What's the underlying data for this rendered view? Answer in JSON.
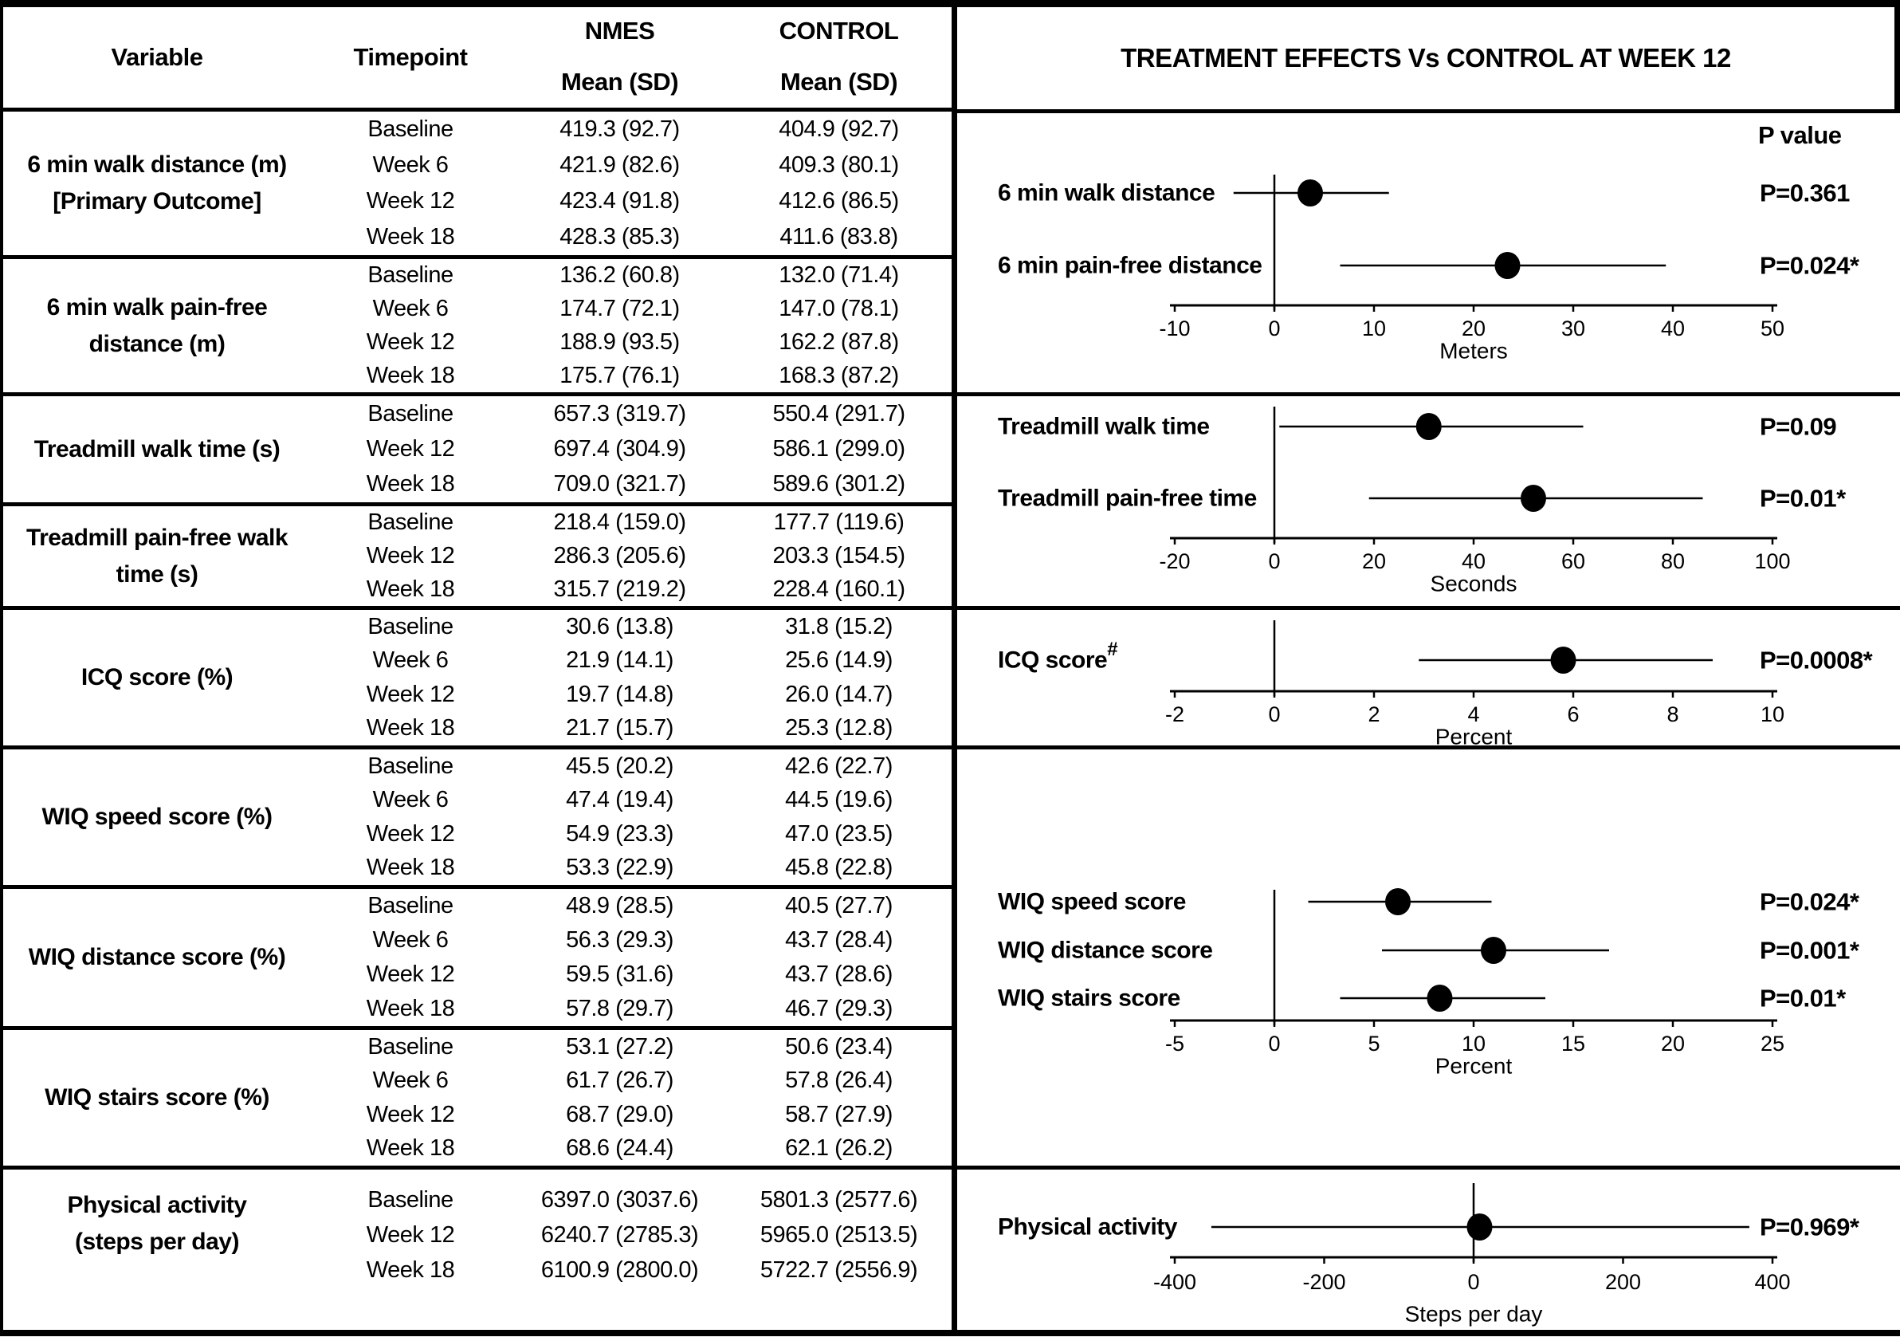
{
  "table": {
    "headers": {
      "variable": "Variable",
      "timepoint": "Timepoint",
      "nmes": "NMES",
      "control": "CONTROL",
      "mean_sd": "Mean (SD)"
    },
    "sections": [
      {
        "variable": [
          "6 min walk distance (m)",
          "[Primary Outcome]"
        ],
        "rows": [
          [
            "Baseline",
            "419.3 (92.7)",
            "404.9 (92.7)"
          ],
          [
            "Week 6",
            "421.9 (82.6)",
            "409.3 (80.1)"
          ],
          [
            "Week 12",
            "423.4 (91.8)",
            "412.6 (86.5)"
          ],
          [
            "Week 18",
            "428.3 (85.3)",
            "411.6 (83.8)"
          ]
        ]
      },
      {
        "variable": [
          "6 min walk pain-free",
          "distance (m)"
        ],
        "rows": [
          [
            "Baseline",
            "136.2 (60.8)",
            "132.0 (71.4)"
          ],
          [
            "Week 6",
            "174.7 (72.1)",
            "147.0 (78.1)"
          ],
          [
            "Week 12",
            "188.9 (93.5)",
            "162.2 (87.8)"
          ],
          [
            "Week 18",
            "175.7 (76.1)",
            "168.3 (87.2)"
          ]
        ]
      },
      {
        "variable": [
          "Treadmill walk time (s)"
        ],
        "rows": [
          [
            "Baseline",
            "657.3 (319.7)",
            "550.4 (291.7)"
          ],
          [
            "Week 12",
            "697.4 (304.9)",
            "586.1 (299.0)"
          ],
          [
            "Week 18",
            "709.0 (321.7)",
            "589.6 (301.2)"
          ]
        ]
      },
      {
        "variable": [
          "Treadmill pain-free walk",
          "time (s)"
        ],
        "rows": [
          [
            "Baseline",
            "218.4 (159.0)",
            "177.7 (119.6)"
          ],
          [
            "Week 12",
            "286.3 (205.6)",
            "203.3 (154.5)"
          ],
          [
            "Week 18",
            "315.7 (219.2)",
            "228.4 (160.1)"
          ]
        ]
      },
      {
        "variable": [
          "ICQ score (%)"
        ],
        "rows": [
          [
            "Baseline",
            "30.6 (13.8)",
            "31.8 (15.2)"
          ],
          [
            "Week 6",
            "21.9 (14.1)",
            "25.6 (14.9)"
          ],
          [
            "Week 12",
            "19.7 (14.8)",
            "26.0 (14.7)"
          ],
          [
            "Week 18",
            "21.7 (15.7)",
            "25.3 (12.8)"
          ]
        ]
      },
      {
        "variable": [
          "WIQ speed score (%)"
        ],
        "rows": [
          [
            "Baseline",
            "45.5 (20.2)",
            "42.6 (22.7)"
          ],
          [
            "Week 6",
            "47.4 (19.4)",
            "44.5 (19.6)"
          ],
          [
            "Week 12",
            "54.9 (23.3)",
            "47.0 (23.5)"
          ],
          [
            "Week 18",
            "53.3 (22.9)",
            "45.8 (22.8)"
          ]
        ]
      },
      {
        "variable": [
          "WIQ distance score (%)"
        ],
        "rows": [
          [
            "Baseline",
            "48.9 (28.5)",
            "40.5 (27.7)"
          ],
          [
            "Week 6",
            "56.3 (29.3)",
            "43.7 (28.4)"
          ],
          [
            "Week 12",
            "59.5 (31.6)",
            "43.7 (28.6)"
          ],
          [
            "Week 18",
            "57.8 (29.7)",
            "46.7 (29.3)"
          ]
        ]
      },
      {
        "variable": [
          "WIQ stairs score (%)"
        ],
        "rows": [
          [
            "Baseline",
            "53.1 (27.2)",
            "50.6 (23.4)"
          ],
          [
            "Week 6",
            "61.7 (26.7)",
            "57.8 (26.4)"
          ],
          [
            "Week 12",
            "68.7 (29.0)",
            "58.7 (27.9)"
          ],
          [
            "Week 18",
            "68.6 (24.4)",
            "62.1 (26.2)"
          ]
        ]
      },
      {
        "variable": [
          "Physical activity",
          "(steps per day)"
        ],
        "rows": [
          [
            "Baseline",
            "6397.0 (3037.6)",
            "5801.3 (2577.6)"
          ],
          [
            "Week 12",
            "6240.7 (2785.3)",
            "5965.0 (2513.5)"
          ],
          [
            "Week 18",
            "6100.9 (2800.0)",
            "5722.7 (2556.9)"
          ]
        ]
      }
    ]
  },
  "panel": {
    "title": "TREATMENT EFFECTS Vs CONTROL AT WEEK 12",
    "p_value_header": "P value"
  },
  "chart_data": [
    {
      "type": "forest",
      "xlabel": "Meters",
      "xlim": [
        -10,
        50
      ],
      "ticks": [
        -10,
        0,
        10,
        20,
        30,
        40,
        50
      ],
      "rows": [
        {
          "label": "6 min walk distance",
          "estimate": 3.6,
          "ci_low": -4.1,
          "ci_high": 11.5,
          "p": "P=0.361"
        },
        {
          "label": "6 min pain-free distance",
          "estimate": 23.4,
          "ci_low": 6.6,
          "ci_high": 39.3,
          "p": "P=0.024*"
        }
      ]
    },
    {
      "type": "forest",
      "xlabel": "Seconds",
      "xlim": [
        -20,
        100
      ],
      "ticks": [
        -20,
        0,
        20,
        40,
        60,
        80,
        100
      ],
      "rows": [
        {
          "label": "Treadmill walk time",
          "estimate": 31,
          "ci_low": 1,
          "ci_high": 62,
          "p": "P=0.09"
        },
        {
          "label": "Treadmill pain-free time",
          "estimate": 52,
          "ci_low": 19,
          "ci_high": 86,
          "p": "P=0.01*"
        }
      ]
    },
    {
      "type": "forest",
      "xlabel": "Percent",
      "xlim": [
        -2,
        10
      ],
      "ticks": [
        -2,
        0,
        2,
        4,
        6,
        8,
        10
      ],
      "rows": [
        {
          "label": "ICQ score",
          "sup": "#",
          "estimate": 5.8,
          "ci_low": 2.9,
          "ci_high": 8.8,
          "p": "P=0.0008*"
        }
      ]
    },
    {
      "type": "forest",
      "xlabel": "Percent",
      "xlim": [
        -5,
        25
      ],
      "ticks": [
        -5,
        0,
        5,
        10,
        15,
        20,
        25
      ],
      "rows": [
        {
          "label": "WIQ speed score",
          "estimate": 6.2,
          "ci_low": 1.7,
          "ci_high": 10.9,
          "p": "P=0.024*"
        },
        {
          "label": "WIQ distance score",
          "estimate": 11.0,
          "ci_low": 5.4,
          "ci_high": 16.8,
          "p": "P=0.001*"
        },
        {
          "label": "WIQ stairs score",
          "estimate": 8.3,
          "ci_low": 3.3,
          "ci_high": 13.6,
          "p": "P=0.01*"
        }
      ]
    },
    {
      "type": "forest",
      "xlabel": "Steps per day",
      "xlim": [
        -400,
        400
      ],
      "ticks": [
        -400,
        -200,
        0,
        200,
        400
      ],
      "rows": [
        {
          "label": "Physical activity",
          "estimate": 8,
          "ci_low": -351,
          "ci_high": 369,
          "p": "P=0.969*"
        }
      ]
    }
  ]
}
